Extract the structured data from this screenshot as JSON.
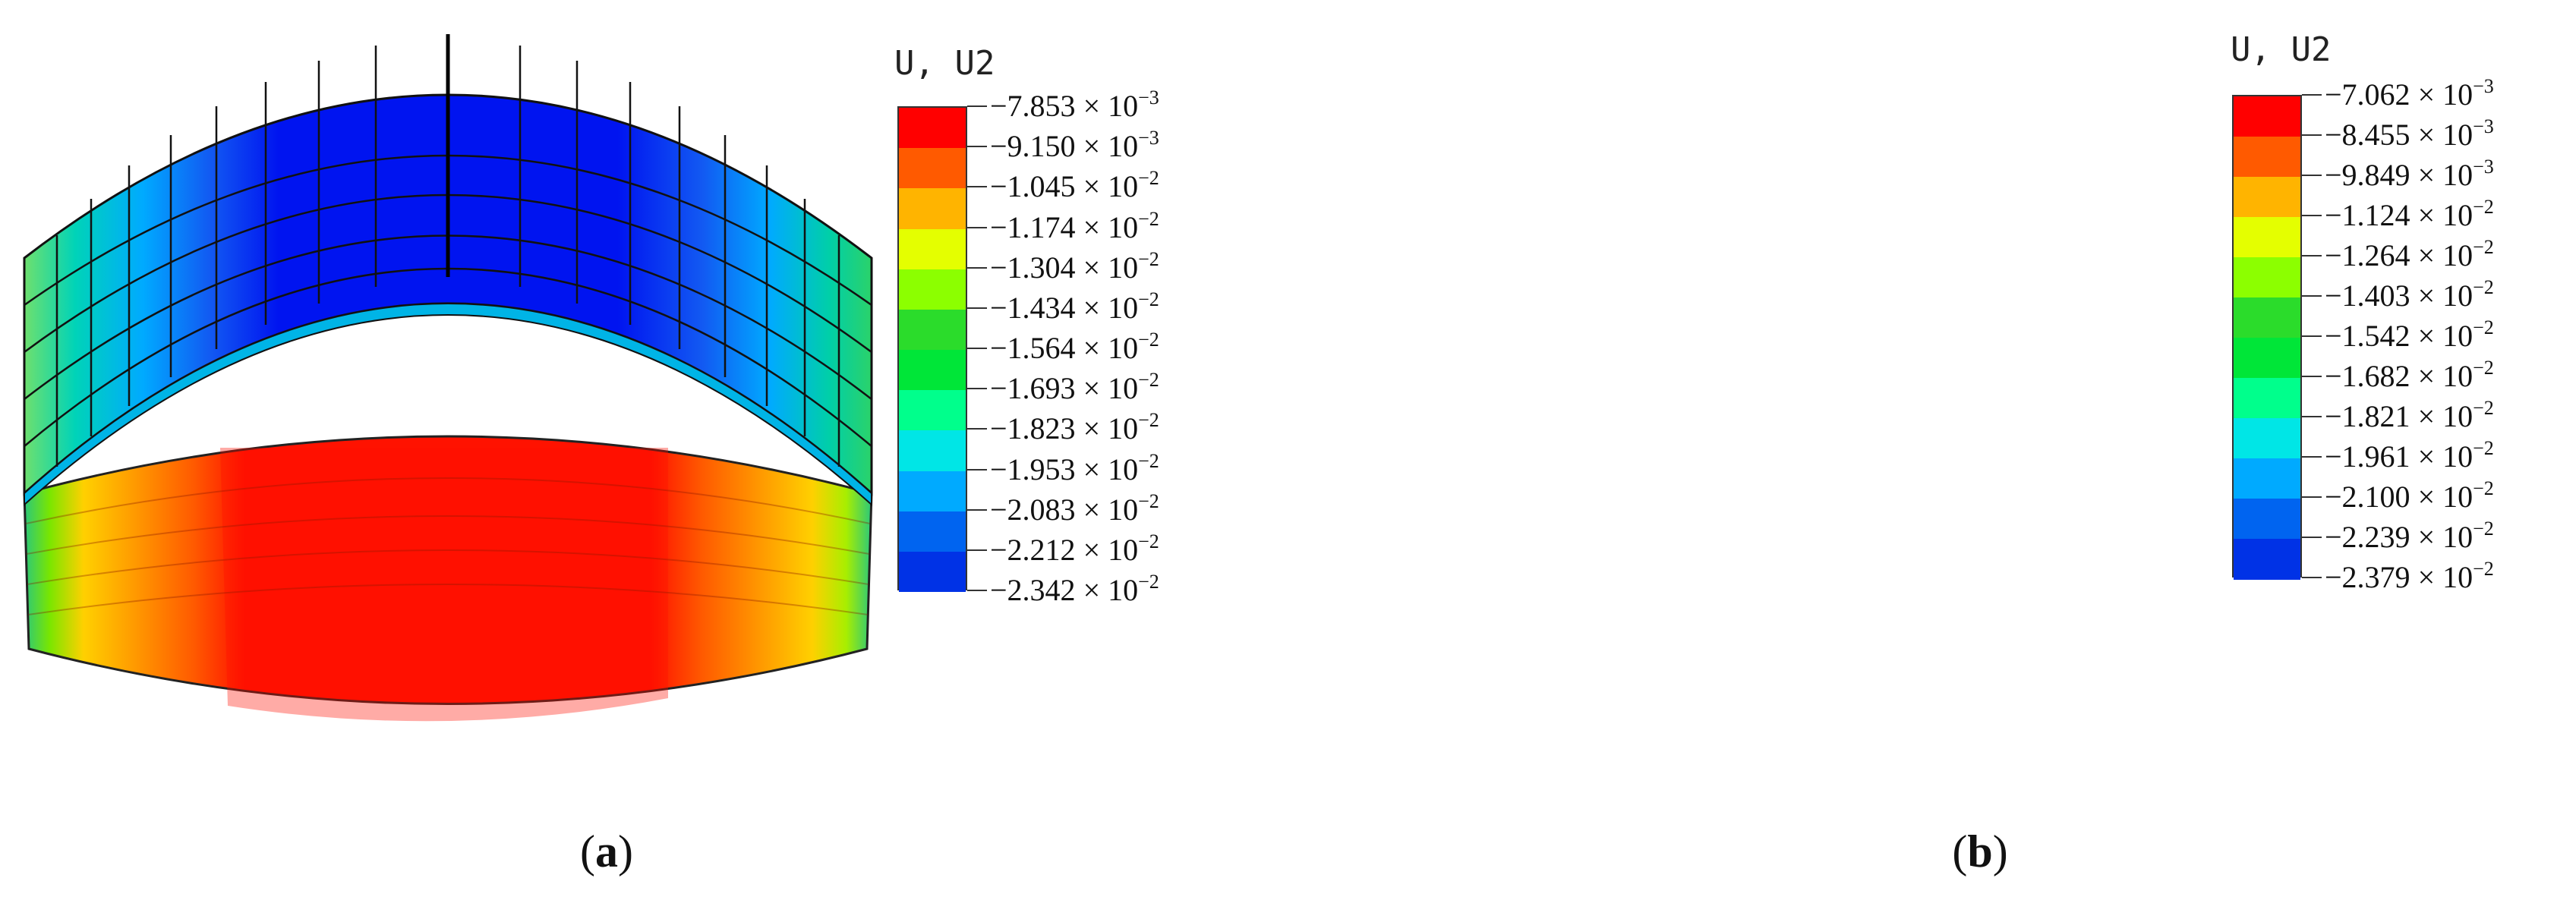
{
  "panels": [
    {
      "id": "a",
      "caption_paren_open": "(",
      "caption_letter": "a",
      "caption_paren_close": ")",
      "variable_label": "U, U2",
      "legend_levels": [
        {
          "mantissa": "−7.853",
          "times": "× 10",
          "exponent": "−3"
        },
        {
          "mantissa": "−9.150",
          "times": "× 10",
          "exponent": "−3"
        },
        {
          "mantissa": "−1.045",
          "times": "× 10",
          "exponent": "−2"
        },
        {
          "mantissa": "−1.174",
          "times": "× 10",
          "exponent": "−2"
        },
        {
          "mantissa": "−1.304",
          "times": "× 10",
          "exponent": "−2"
        },
        {
          "mantissa": "−1.434",
          "times": "× 10",
          "exponent": "−2"
        },
        {
          "mantissa": "−1.564",
          "times": "× 10",
          "exponent": "−2"
        },
        {
          "mantissa": "−1.693",
          "times": "× 10",
          "exponent": "−2"
        },
        {
          "mantissa": "−1.823",
          "times": "× 10",
          "exponent": "−2"
        },
        {
          "mantissa": "−1.953",
          "times": "× 10",
          "exponent": "−2"
        },
        {
          "mantissa": "−2.083",
          "times": "× 10",
          "exponent": "−2"
        },
        {
          "mantissa": "−2.212",
          "times": "× 10",
          "exponent": "−2"
        },
        {
          "mantissa": "−2.342",
          "times": "× 10",
          "exponent": "−2"
        }
      ]
    },
    {
      "id": "b",
      "caption_paren_open": "(",
      "caption_letter": "b",
      "caption_paren_close": ")",
      "variable_label": "U, U2",
      "legend_levels": [
        {
          "mantissa": "−7.062",
          "times": "× 10",
          "exponent": "−3"
        },
        {
          "mantissa": "−8.455",
          "times": "× 10",
          "exponent": "−3"
        },
        {
          "mantissa": "−9.849",
          "times": "× 10",
          "exponent": "−3"
        },
        {
          "mantissa": "−1.124",
          "times": "× 10",
          "exponent": "−2"
        },
        {
          "mantissa": "−1.264",
          "times": "× 10",
          "exponent": "−2"
        },
        {
          "mantissa": "−1.403",
          "times": "× 10",
          "exponent": "−2"
        },
        {
          "mantissa": "−1.542",
          "times": "× 10",
          "exponent": "−2"
        },
        {
          "mantissa": "−1.682",
          "times": "× 10",
          "exponent": "−2"
        },
        {
          "mantissa": "−1.821",
          "times": "× 10",
          "exponent": "−2"
        },
        {
          "mantissa": "−1.961",
          "times": "× 10",
          "exponent": "−2"
        },
        {
          "mantissa": "−2.100",
          "times": "× 10",
          "exponent": "−2"
        },
        {
          "mantissa": "−2.239",
          "times": "× 10",
          "exponent": "−2"
        },
        {
          "mantissa": "−2.379",
          "times": "× 10",
          "exponent": "−2"
        }
      ]
    }
  ],
  "colors": {
    "contour_bands": [
      "#ff0000",
      "#ff5a00",
      "#ffb400",
      "#e4ff00",
      "#8cff00",
      "#2bdc2b",
      "#00e638",
      "#00ff8c",
      "#00e6e6",
      "#00aaff",
      "#0064f0",
      "#0032e6",
      "#0000ff"
    ],
    "mesh_line": "#111111",
    "frame": "#333333"
  }
}
